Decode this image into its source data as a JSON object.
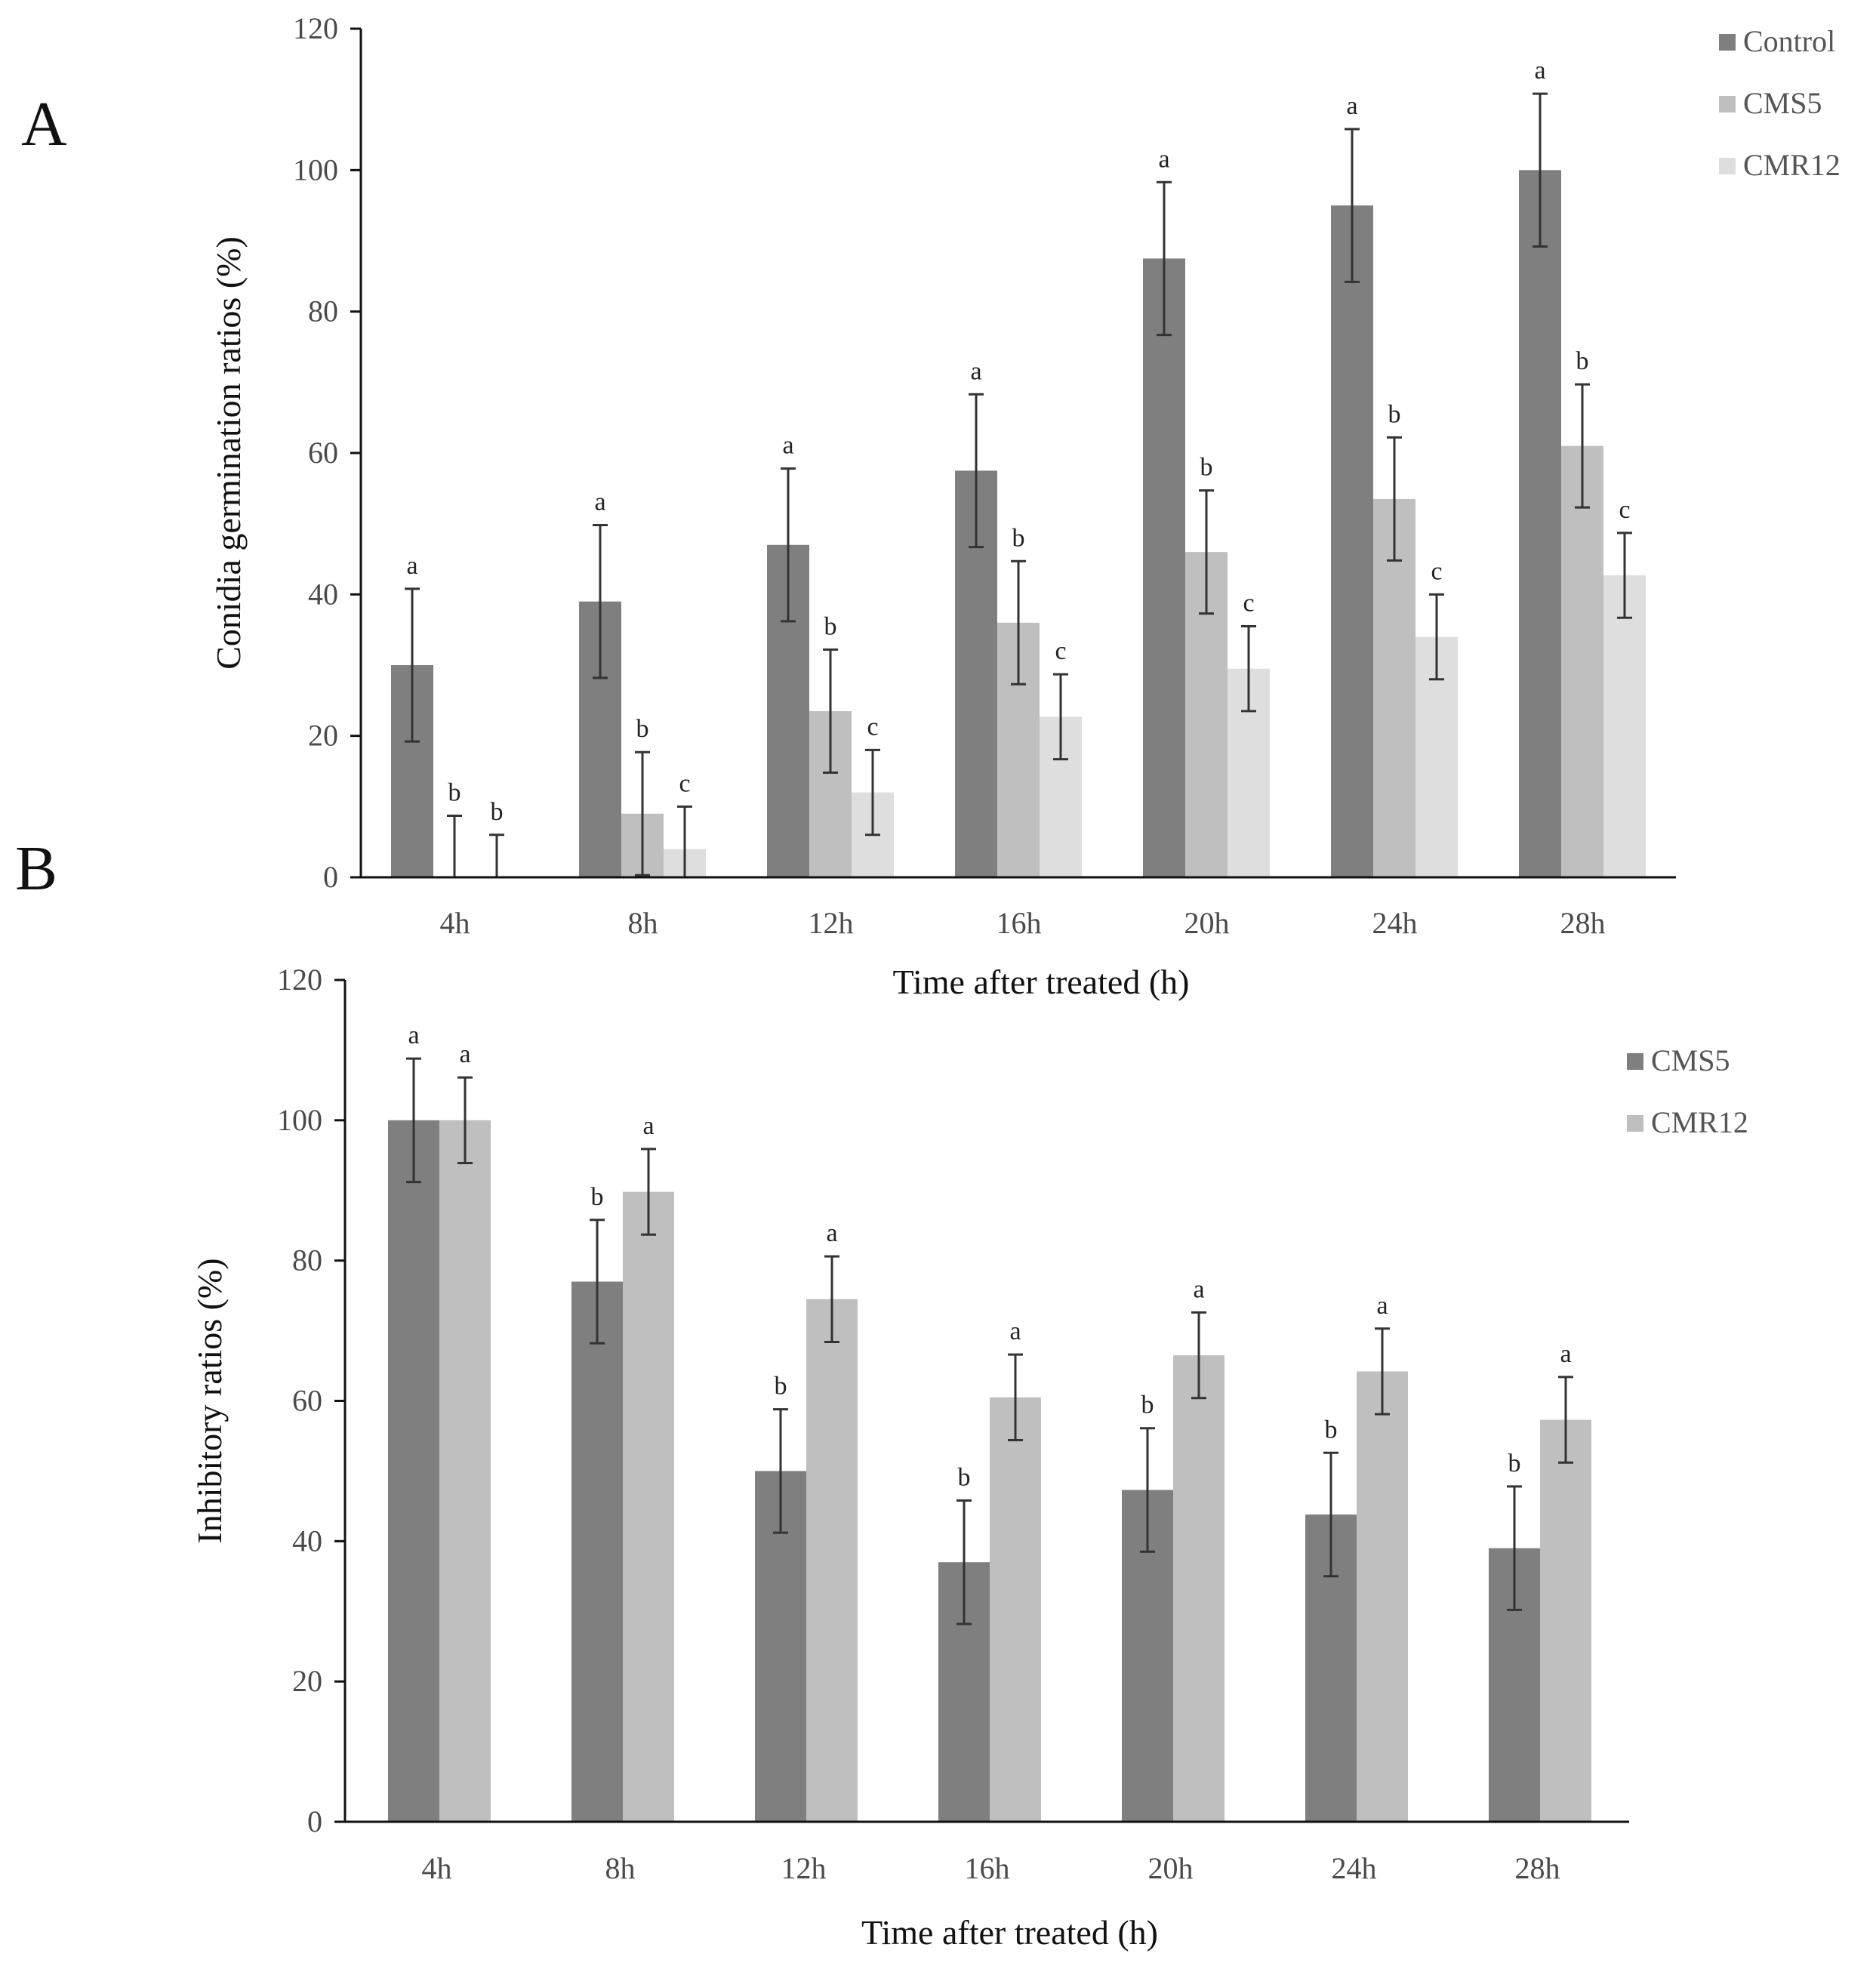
{
  "panels": {
    "A": {
      "label": "A"
    },
    "B": {
      "label": "B"
    }
  },
  "chart_data": [
    {
      "id": "A",
      "type": "bar",
      "panel_label": "A",
      "title": "",
      "xlabel": "Time after treated (h)",
      "ylabel": "Conidia germination ratios (%)",
      "ylim": [
        0,
        120
      ],
      "yticks": [
        0,
        20,
        40,
        60,
        80,
        100,
        120
      ],
      "grid": false,
      "legend_position": "top-right",
      "categories": [
        "4h",
        "8h",
        "12h",
        "16h",
        "20h",
        "24h",
        "28h"
      ],
      "series": [
        {
          "name": "Control",
          "color": "#7f7f7f",
          "values": [
            30,
            39,
            47,
            57.5,
            87.5,
            95,
            100
          ],
          "errors": [
            10.8,
            10.8,
            10.8,
            10.8,
            10.8,
            10.8,
            10.8
          ],
          "letters": [
            "a",
            "a",
            "a",
            "a",
            "a",
            "a",
            "a"
          ]
        },
        {
          "name": "CMS5",
          "color": "#bfbfbf",
          "values": [
            0,
            9,
            23.5,
            36,
            46,
            53.5,
            61
          ],
          "errors": [
            8.7,
            8.7,
            8.7,
            8.7,
            8.7,
            8.7,
            8.7
          ],
          "letters": [
            "b",
            "b",
            "b",
            "b",
            "b",
            "b",
            "b"
          ]
        },
        {
          "name": "CMR12",
          "color": "#dedede",
          "values": [
            0,
            4,
            12,
            22.7,
            29.5,
            34,
            42.7
          ],
          "errors": [
            6,
            6,
            6,
            6,
            6,
            6,
            6
          ],
          "letters": [
            "b",
            "c",
            "c",
            "c",
            "c",
            "c",
            "c"
          ]
        }
      ]
    },
    {
      "id": "B",
      "type": "bar",
      "panel_label": "B",
      "title": "",
      "xlabel": "Time after treated (h)",
      "ylabel": "Inhibitory ratios (%)",
      "ylim": [
        0,
        120
      ],
      "yticks": [
        0,
        20,
        40,
        60,
        80,
        100,
        120
      ],
      "grid": false,
      "legend_position": "top-right",
      "categories": [
        "4h",
        "8h",
        "12h",
        "16h",
        "20h",
        "24h",
        "28h"
      ],
      "series": [
        {
          "name": "CMS5",
          "color": "#7f7f7f",
          "values": [
            100,
            77,
            50,
            37,
            47.3,
            43.8,
            39
          ],
          "errors": [
            8.8,
            8.8,
            8.8,
            8.8,
            8.8,
            8.8,
            8.8
          ],
          "letters": [
            "a",
            "b",
            "b",
            "b",
            "b",
            "b",
            "b"
          ]
        },
        {
          "name": "CMR12",
          "color": "#bfbfbf",
          "values": [
            100,
            89.8,
            74.5,
            60.5,
            66.5,
            64.2,
            57.3
          ],
          "errors": [
            6.1,
            6.1,
            6.1,
            6.1,
            6.1,
            6.1,
            6.1
          ],
          "letters": [
            "a",
            "a",
            "a",
            "a",
            "a",
            "a",
            "a"
          ]
        }
      ]
    }
  ]
}
